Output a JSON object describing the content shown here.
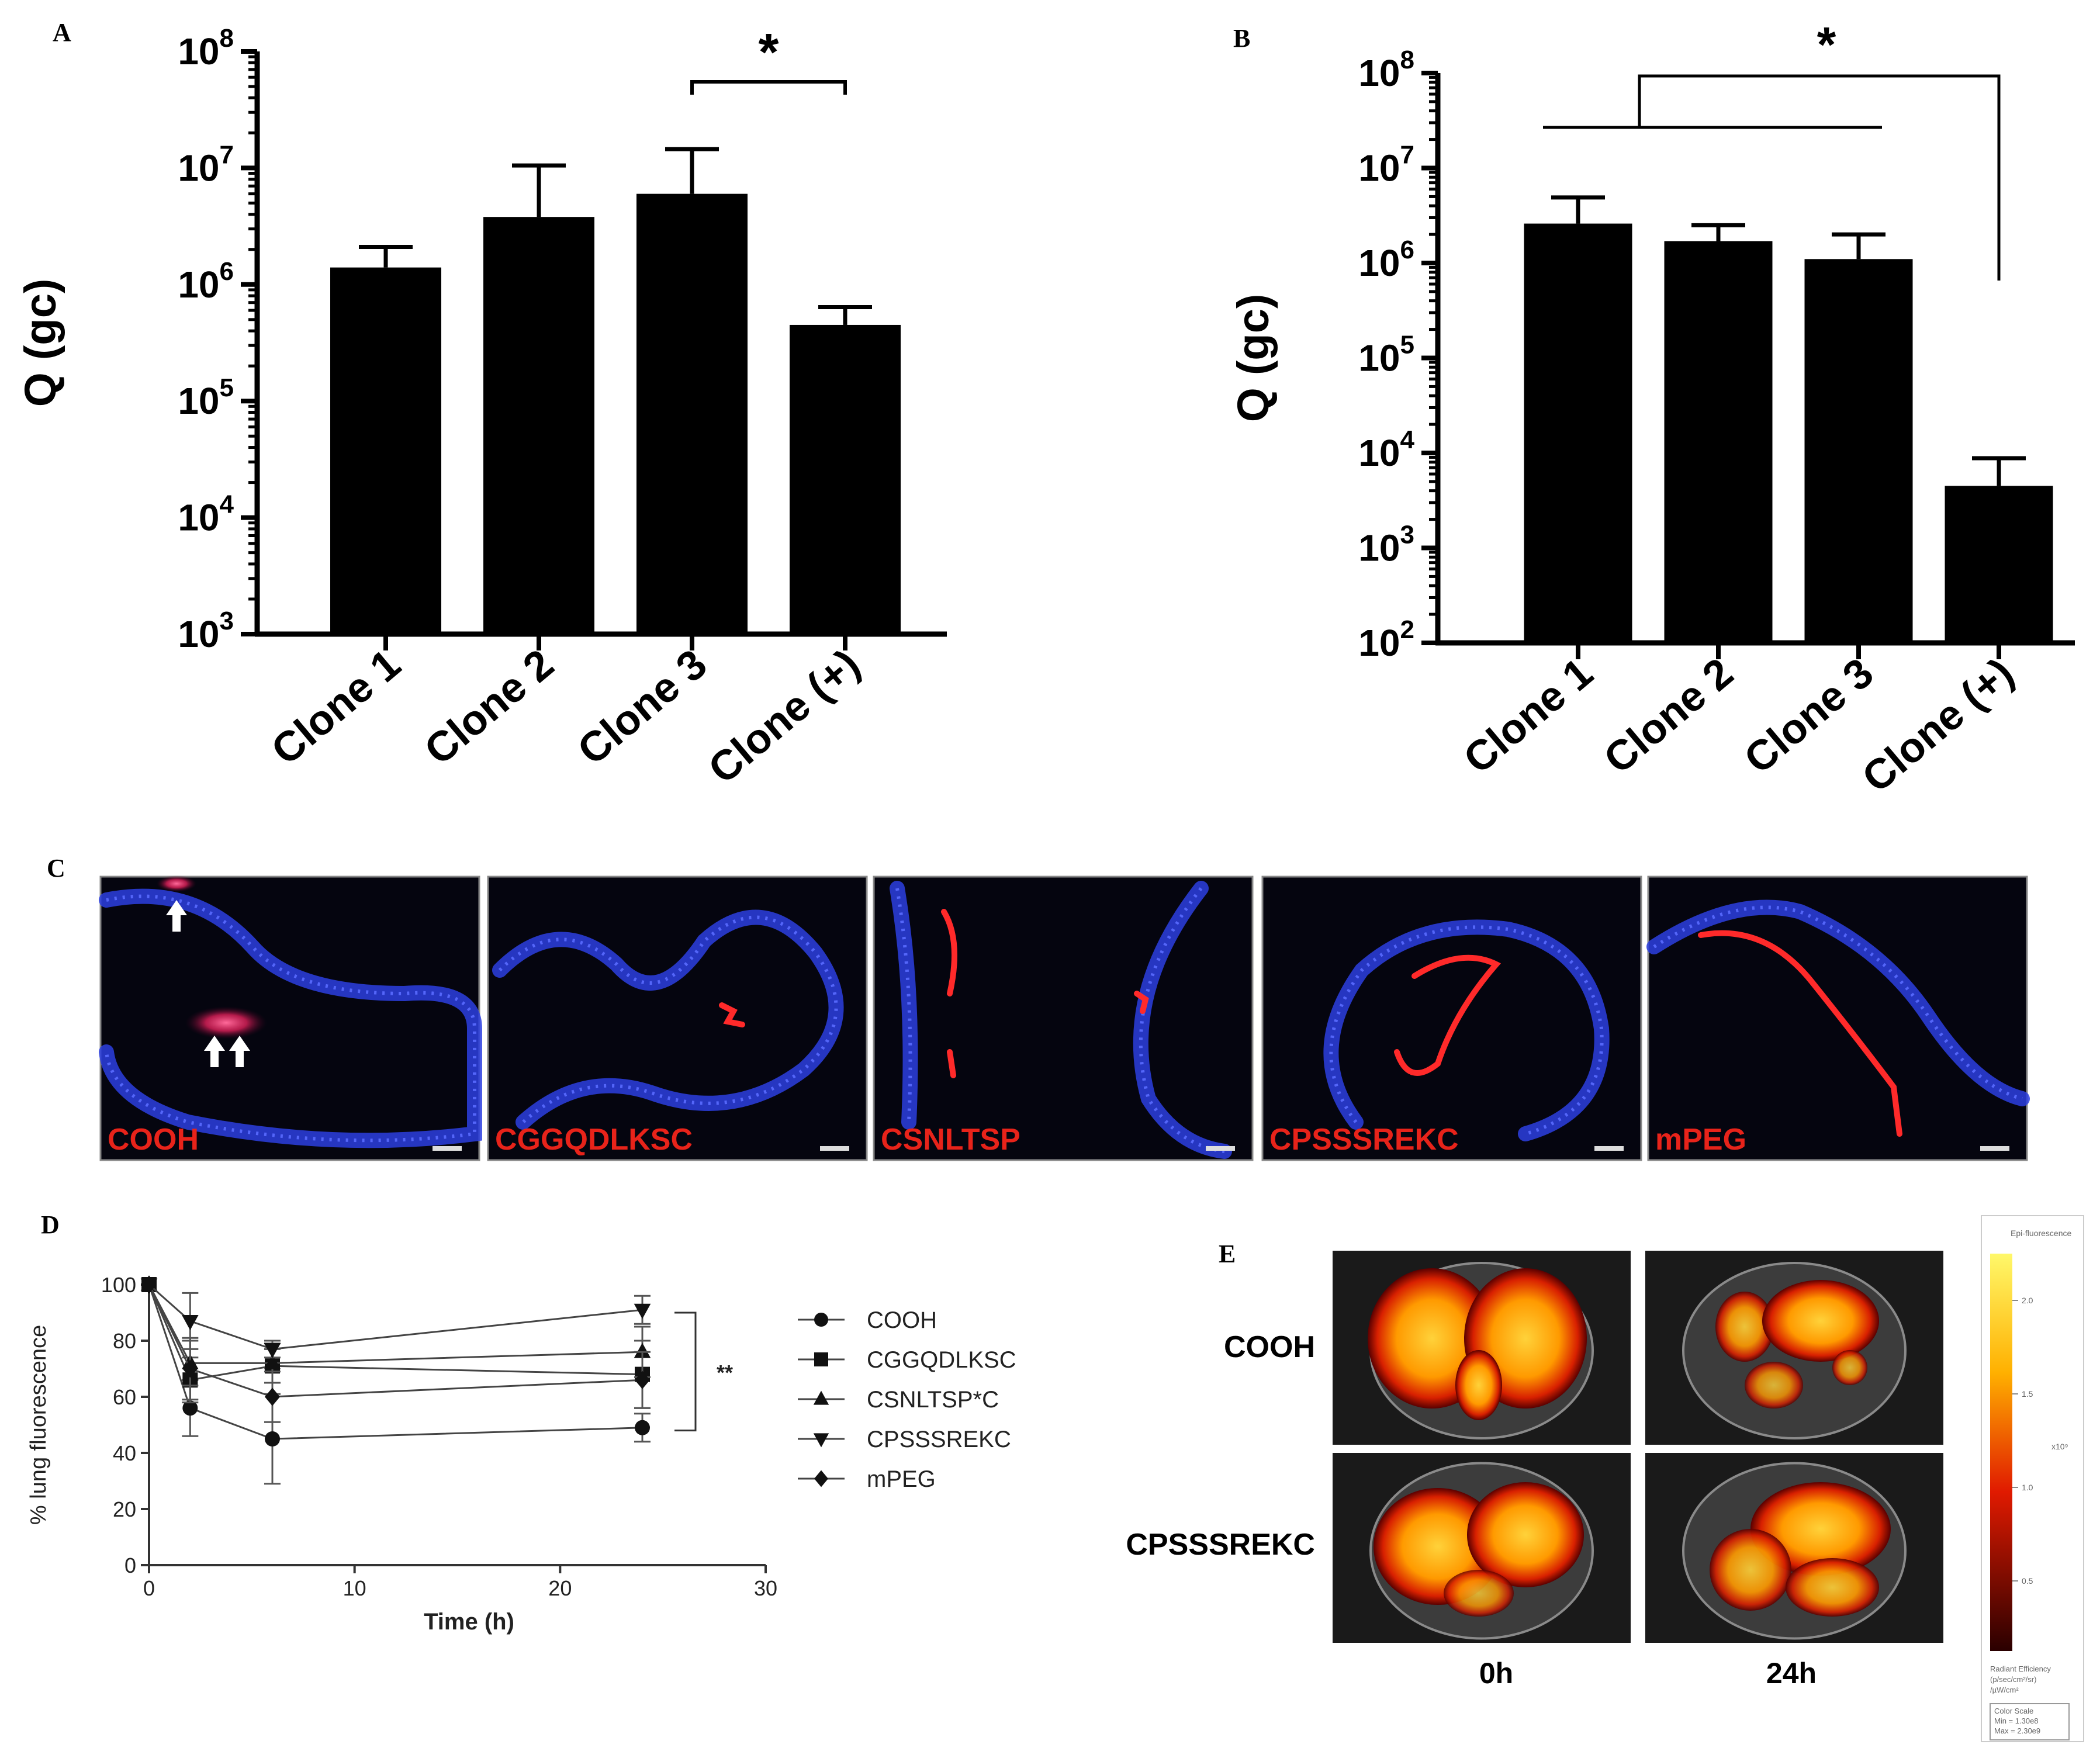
{
  "panel_labels": {
    "a": "A",
    "b": "B",
    "c": "C",
    "d": "D",
    "e": "E"
  },
  "chart_data": [
    {
      "panel": "A",
      "type": "bar",
      "scale": "log",
      "ylabel": "Q (gc)",
      "ylim": [
        1000,
        100000000
      ],
      "yticks": [
        {
          "base": "10",
          "exp": "3",
          "value": 1000
        },
        {
          "base": "10",
          "exp": "4",
          "value": 10000
        },
        {
          "base": "10",
          "exp": "5",
          "value": 100000
        },
        {
          "base": "10",
          "exp": "6",
          "value": 1000000
        },
        {
          "base": "10",
          "exp": "7",
          "value": 10000000
        },
        {
          "base": "10",
          "exp": "8",
          "value": 100000000
        }
      ],
      "categories": [
        "Clone 1",
        "Clone 2",
        "Clone 3",
        "Clone (+)"
      ],
      "values": [
        1400000,
        3800000,
        6000000,
        450000
      ],
      "errors_upper": [
        2100000,
        10500000,
        14500000,
        640000
      ],
      "significance": "*"
    },
    {
      "panel": "B",
      "type": "bar",
      "scale": "log",
      "ylabel": "Q (gc)",
      "ylim": [
        100,
        100000000
      ],
      "yticks": [
        {
          "base": "10",
          "exp": "2",
          "value": 100
        },
        {
          "base": "10",
          "exp": "3",
          "value": 1000
        },
        {
          "base": "10",
          "exp": "4",
          "value": 10000
        },
        {
          "base": "10",
          "exp": "5",
          "value": 100000
        },
        {
          "base": "10",
          "exp": "6",
          "value": 1000000
        },
        {
          "base": "10",
          "exp": "7",
          "value": 10000000
        },
        {
          "base": "10",
          "exp": "8",
          "value": 100000000
        }
      ],
      "categories": [
        "Clone 1",
        "Clone 2",
        "Clone 3",
        "Clone (+)"
      ],
      "values": [
        2600000,
        1700000,
        1100000,
        4500
      ],
      "errors_upper": [
        4900000,
        2500000,
        2000000,
        8800
      ],
      "significance": "*"
    },
    {
      "panel": "D",
      "type": "line",
      "xlabel": "Time (h)",
      "ylabel": "% lung fluorescence",
      "xlim": [
        0,
        30
      ],
      "ylim": [
        0,
        100
      ],
      "xticks": [
        0,
        10,
        20,
        30
      ],
      "yticks": [
        0,
        20,
        40,
        60,
        80,
        100
      ],
      "x": [
        0,
        2,
        6,
        24
      ],
      "series": [
        {
          "name": "COOH",
          "marker": "circle",
          "values": [
            100,
            56,
            45,
            49
          ],
          "err": [
            0,
            10,
            16,
            5
          ]
        },
        {
          "name": "CGGQDLKSC",
          "marker": "square",
          "values": [
            100,
            66,
            71,
            68
          ],
          "err": [
            0,
            8,
            6,
            12
          ]
        },
        {
          "name": "CSNLTSP*C",
          "marker": "triangle-up",
          "values": [
            100,
            72,
            72,
            76
          ],
          "err": [
            0,
            8,
            7,
            9
          ]
        },
        {
          "name": "CPSSSREKC",
          "marker": "triangle-down",
          "values": [
            100,
            87,
            77,
            91
          ],
          "err": [
            0,
            10,
            3,
            5
          ]
        },
        {
          "name": "mPEG",
          "marker": "diamond",
          "values": [
            100,
            70,
            60,
            66
          ],
          "err": [
            0,
            11,
            9,
            10
          ]
        }
      ],
      "significance": "**"
    }
  ],
  "panel_c": {
    "tiles": [
      {
        "label": "COOH"
      },
      {
        "label": "CGGQDLKSC"
      },
      {
        "label": "CSNLTSP"
      },
      {
        "label": "CPSSSREKC"
      },
      {
        "label": "mPEG"
      }
    ],
    "label_color": "#e8231a",
    "stain_blue": "#2d3fe0",
    "stain_red": "#ff2a2a"
  },
  "panel_e": {
    "rows": [
      "COOH",
      "CPSSSREKC"
    ],
    "columns": [
      "0h",
      "24h"
    ],
    "colorbar_title": "Epi-fluorescence",
    "colorbar_ticks": [
      "2.0",
      "1.5",
      "1.0",
      "0.5"
    ],
    "colorbar_unit": "x10⁹",
    "colorbar_footer": [
      "Radiant Efficiency",
      "(p/sec/cm²/sr)",
      "/µW/cm²"
    ],
    "color_scale": [
      "Color Scale",
      "Min = 1.30e8",
      "Max = 2.30e9"
    ]
  }
}
